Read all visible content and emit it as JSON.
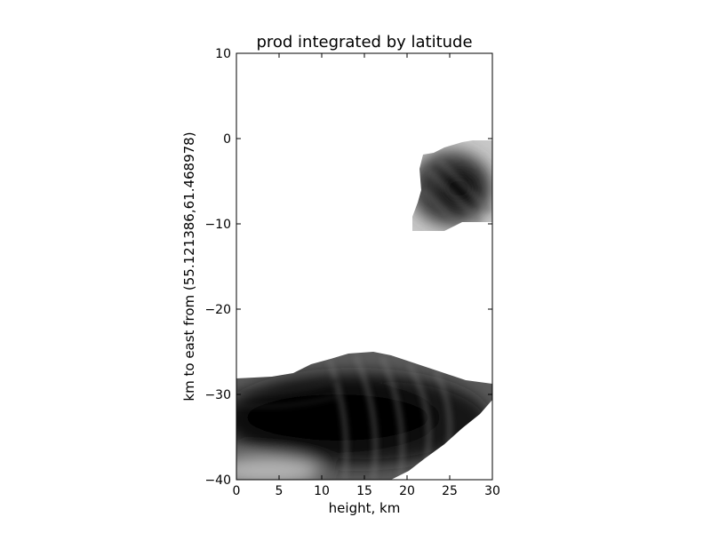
{
  "chart_data": {
    "type": "heatmap",
    "title": "prod integrated by latitude",
    "xlabel": "height, km",
    "ylabel": "km to east from (55.121386,61.468978)",
    "xlim": [
      0,
      30
    ],
    "ylim": [
      -40,
      10
    ],
    "xticks": [
      0,
      5,
      10,
      15,
      20,
      25,
      30
    ],
    "xtick_labels": [
      "0",
      "5",
      "10",
      "15",
      "20",
      "25",
      "30"
    ],
    "yticks": [
      10,
      0,
      -10,
      -20,
      -30,
      -40
    ],
    "ytick_labels": [
      "10",
      "0",
      "−10",
      "−20",
      "−30",
      "−40"
    ],
    "grid": false,
    "colormap": "grayscale (white = 0, black = max)",
    "regions": [
      {
        "x_range": [
          21,
          30
        ],
        "y_range": [
          -10.5,
          -0.5
        ],
        "peak": {
          "x": 26,
          "y": -6
        }
      },
      {
        "x_range": [
          0,
          30
        ],
        "y_range": [
          -40,
          -25.5
        ],
        "peak": {
          "x": 13,
          "y": -33
        }
      }
    ]
  },
  "colors": {
    "background": "#ffffff",
    "axes": "#000000"
  }
}
